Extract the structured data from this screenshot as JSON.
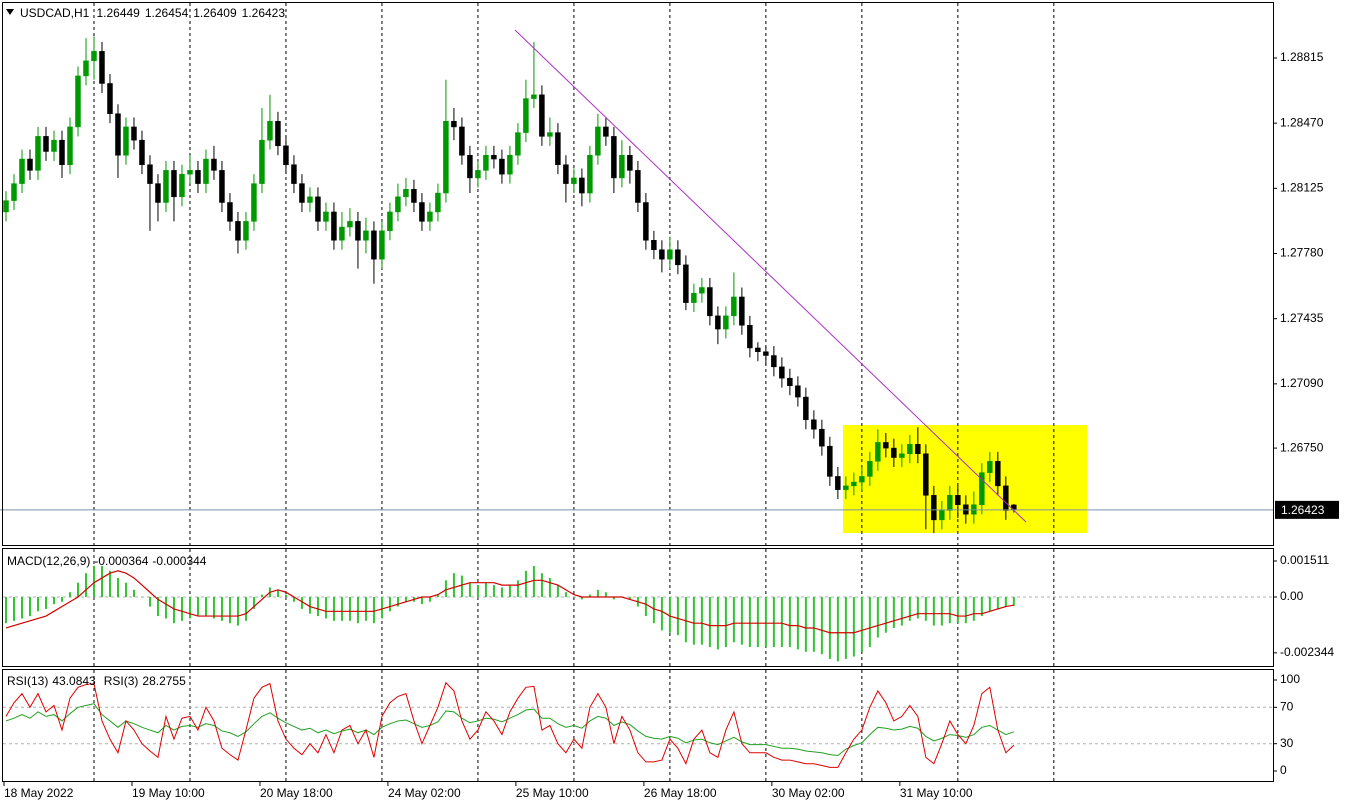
{
  "chart_data": [
    {
      "type": "candlestick",
      "title": "USDCAD,H1",
      "bull_color": "#009900",
      "bear_color": "#000000",
      "price_line_color": "#7a93a8",
      "xlim": [
        -0.75,
        158.4
      ],
      "xticks": [
        {
          "value": 0,
          "label": "18 May 2022"
        },
        {
          "value": 16,
          "label": "19 May 10:00"
        },
        {
          "value": 32,
          "label": "20 May 18:00"
        },
        {
          "value": 48,
          "label": "24 May 02:00"
        },
        {
          "value": 64,
          "label": "25 May 10:00"
        },
        {
          "value": 80,
          "label": "26 May 18:00"
        },
        {
          "value": 96,
          "label": "30 May 02:00"
        },
        {
          "value": 112,
          "label": "31 May 10:00"
        }
      ],
      "xgrid": [
        11,
        23,
        35,
        47,
        59,
        71,
        83,
        95,
        107,
        119,
        131
      ],
      "ylim": [
        1.26237,
        1.29106
      ],
      "yticks": [
        1.28815,
        {
          "value": 1.2847,
          "label": "1.28470"
        },
        1.28125,
        {
          "value": 1.2778,
          "label": "1.27780"
        },
        1.27435,
        {
          "value": 1.2709,
          "label": "1.27090"
        },
        {
          "value": 1.2675,
          "label": "1.26750"
        }
      ],
      "open": [
        1.28,
        1.2806,
        1.2815,
        1.2828,
        1.2822,
        1.284,
        1.2832,
        1.2838,
        1.2825,
        1.2845,
        1.2872,
        1.288,
        1.2885,
        1.2868,
        1.2852,
        1.283,
        1.2845,
        1.2838,
        1.2825,
        1.2815,
        1.2805,
        1.2822,
        1.2808,
        1.282,
        1.2822,
        1.2815,
        1.2828,
        1.2822,
        1.2805,
        1.2795,
        1.2785,
        1.2795,
        1.2815,
        1.2838,
        1.2848,
        1.2835,
        1.2825,
        1.2815,
        1.2805,
        1.2808,
        1.2795,
        1.28,
        1.2785,
        1.2792,
        1.2795,
        1.2785,
        1.279,
        1.2775,
        1.279,
        1.28,
        1.2808,
        1.2812,
        1.2805,
        1.2795,
        1.28,
        1.281,
        1.2848,
        1.2845,
        1.283,
        1.2818,
        1.2822,
        1.283,
        1.2828,
        1.282,
        1.283,
        1.2842,
        1.286,
        1.2862,
        1.284,
        1.2842,
        1.2825,
        1.2815,
        1.2818,
        1.281,
        1.283,
        1.2845,
        1.284,
        1.2818,
        1.283,
        1.2822,
        1.2805,
        1.2785,
        1.278,
        1.2775,
        1.278,
        1.2772,
        1.2752,
        1.2757,
        1.276,
        1.2745,
        1.2738,
        1.2745,
        1.2755,
        1.274,
        1.2728,
        1.2726,
        1.2724,
        1.2718,
        1.2712,
        1.2708,
        1.2702,
        1.269,
        1.2685,
        1.2676,
        1.266,
        1.2653,
        1.2655,
        1.2657,
        1.266,
        1.2668,
        1.2678,
        1.2675,
        1.267,
        1.2672,
        1.2677,
        1.2672,
        1.265,
        1.2637,
        1.2642,
        1.265,
        1.2645,
        1.264,
        1.2645,
        1.2662,
        1.2668,
        1.2655,
        1.26449
      ],
      "high": [
        1.2811,
        1.282,
        1.2833,
        1.2833,
        1.2845,
        1.2845,
        1.2843,
        1.2843,
        1.285,
        1.2877,
        1.2892,
        1.2893,
        1.289,
        1.2873,
        1.2857,
        1.285,
        1.285,
        1.2843,
        1.283,
        1.282,
        1.2827,
        1.2827,
        1.2825,
        1.283,
        1.2827,
        1.2833,
        1.2835,
        1.2827,
        1.281,
        1.28,
        1.28,
        1.282,
        1.2855,
        1.2862,
        1.2853,
        1.284,
        1.283,
        1.282,
        1.2813,
        1.2813,
        1.2805,
        1.2805,
        1.28,
        1.2802,
        1.28,
        1.2797,
        1.2795,
        1.2795,
        1.2805,
        1.2815,
        1.2818,
        1.2817,
        1.281,
        1.2805,
        1.2815,
        1.287,
        1.2855,
        1.285,
        1.2835,
        1.2827,
        1.2835,
        1.2835,
        1.2833,
        1.2835,
        1.2847,
        1.287,
        1.289,
        1.2867,
        1.285,
        1.2847,
        1.283,
        1.2823,
        1.2823,
        1.2835,
        1.2852,
        1.285,
        1.2845,
        1.2838,
        1.2835,
        1.2827,
        1.281,
        1.279,
        1.2785,
        1.2787,
        1.2785,
        1.2777,
        1.2762,
        1.2765,
        1.2765,
        1.275,
        1.275,
        1.2768,
        1.276,
        1.2745,
        1.2731,
        1.2729,
        1.2729,
        1.2723,
        1.2717,
        1.2713,
        1.2707,
        1.2695,
        1.269,
        1.2681,
        1.2665,
        1.266,
        1.2662,
        1.2665,
        1.2673,
        1.2685,
        1.2683,
        1.268,
        1.2677,
        1.2682,
        1.2686,
        1.2677,
        1.2655,
        1.2647,
        1.2655,
        1.2655,
        1.265,
        1.2652,
        1.2667,
        1.2673,
        1.2673,
        1.266,
        1.26454
      ],
      "low": [
        1.2795,
        1.2801,
        1.281,
        1.2817,
        1.2817,
        1.2827,
        1.2827,
        1.2818,
        1.282,
        1.284,
        1.2867,
        1.287,
        1.2863,
        1.2847,
        1.2818,
        1.2825,
        1.2833,
        1.282,
        1.279,
        1.2795,
        1.28,
        1.2795,
        1.2803,
        1.2815,
        1.281,
        1.281,
        1.2817,
        1.28,
        1.279,
        1.2778,
        1.278,
        1.279,
        1.281,
        1.2833,
        1.283,
        1.282,
        1.281,
        1.28,
        1.28,
        1.279,
        1.279,
        1.278,
        1.278,
        1.2787,
        1.277,
        1.2778,
        1.2762,
        1.277,
        1.2785,
        1.2795,
        1.2803,
        1.28,
        1.279,
        1.279,
        1.2795,
        1.2805,
        1.2838,
        1.2825,
        1.281,
        1.2813,
        1.2817,
        1.2823,
        1.2815,
        1.2815,
        1.2825,
        1.2837,
        1.2855,
        1.2835,
        1.2835,
        1.282,
        1.2805,
        1.281,
        1.2803,
        1.2805,
        1.2825,
        1.2835,
        1.281,
        1.2813,
        1.2815,
        1.28,
        1.278,
        1.2775,
        1.2768,
        1.277,
        1.2767,
        1.2748,
        1.2747,
        1.2752,
        1.274,
        1.273,
        1.2733,
        1.274,
        1.2735,
        1.2723,
        1.2721,
        1.2719,
        1.2713,
        1.2707,
        1.2703,
        1.2697,
        1.2685,
        1.268,
        1.2671,
        1.2655,
        1.2648,
        1.2648,
        1.265,
        1.2652,
        1.2655,
        1.2663,
        1.267,
        1.2665,
        1.2665,
        1.2667,
        1.2667,
        1.2632,
        1.263,
        1.2632,
        1.2637,
        1.2638,
        1.2635,
        1.2635,
        1.264,
        1.2657,
        1.265,
        1.2637,
        1.26409
      ],
      "close": [
        1.2806,
        1.2815,
        1.2828,
        1.2822,
        1.284,
        1.2832,
        1.2838,
        1.2825,
        1.2845,
        1.2872,
        1.288,
        1.2885,
        1.2868,
        1.2852,
        1.283,
        1.2845,
        1.2838,
        1.2825,
        1.2815,
        1.2805,
        1.2822,
        1.2808,
        1.282,
        1.2822,
        1.2815,
        1.2828,
        1.2822,
        1.2805,
        1.2795,
        1.2785,
        1.2795,
        1.2815,
        1.2838,
        1.2848,
        1.2835,
        1.2825,
        1.2815,
        1.2805,
        1.2808,
        1.2795,
        1.28,
        1.2785,
        1.2792,
        1.2795,
        1.2785,
        1.279,
        1.2775,
        1.279,
        1.28,
        1.2808,
        1.2812,
        1.2805,
        1.2795,
        1.28,
        1.281,
        1.2848,
        1.2845,
        1.283,
        1.2818,
        1.2822,
        1.283,
        1.2828,
        1.282,
        1.283,
        1.2842,
        1.286,
        1.2862,
        1.284,
        1.2842,
        1.2825,
        1.2815,
        1.2818,
        1.281,
        1.283,
        1.2845,
        1.284,
        1.2818,
        1.283,
        1.2822,
        1.2805,
        1.2785,
        1.278,
        1.2775,
        1.278,
        1.2772,
        1.2752,
        1.2757,
        1.276,
        1.2745,
        1.2738,
        1.2745,
        1.2755,
        1.274,
        1.2728,
        1.2726,
        1.2724,
        1.2718,
        1.2712,
        1.2708,
        1.2702,
        1.269,
        1.2685,
        1.2676,
        1.266,
        1.2653,
        1.2655,
        1.2657,
        1.266,
        1.2668,
        1.2678,
        1.2675,
        1.267,
        1.2672,
        1.2677,
        1.2672,
        1.265,
        1.2637,
        1.2642,
        1.265,
        1.2645,
        1.264,
        1.2645,
        1.2662,
        1.2668,
        1.2655,
        1.2642,
        1.26423
      ]
    },
    {
      "type": "macd",
      "title": "MACD(12,26,9)",
      "histogram_color": "#33c433",
      "signal_color": "#d40000",
      "ylim": [
        -0.002896,
        0.002015
      ],
      "yticks": [
        0.001511,
        {
          "value": 0,
          "label": "0.00"
        },
        -0.002344
      ],
      "levels": [
        0
      ],
      "histogram": [
        -0.0011,
        -0.001,
        -0.0009,
        -0.0008,
        -0.0006,
        -0.0005,
        -0.0003,
        -0.0002,
        0.0002,
        0.0006,
        0.001,
        0.0013,
        0.0013,
        0.0011,
        0.0008,
        0.0006,
        0.0003,
        0,
        -0.0004,
        -0.0008,
        -0.0009,
        -0.0011,
        -0.001,
        -0.0009,
        -0.0008,
        -0.0008,
        -0.0009,
        -0.001,
        -0.0011,
        -0.0012,
        -0.001,
        -0.0005,
        0.0001,
        0.0004,
        0.0003,
        0.0001,
        -0.0002,
        -0.0005,
        -0.0007,
        -0.0008,
        -0.0009,
        -0.001,
        -0.001,
        -0.001,
        -0.0011,
        -0.001,
        -0.0011,
        -0.0009,
        -0.0006,
        -0.0004,
        -0.0002,
        -0.0002,
        -0.0003,
        -0.0002,
        0.0001,
        0.0007,
        0.001,
        0.0009,
        0.0006,
        0.0005,
        0.0006,
        0.0005,
        0.0004,
        0.0005,
        0.0007,
        0.0011,
        0.0013,
        0.001,
        0.0008,
        0.0005,
        0.0002,
        0,
        -0.0001,
        0.0001,
        0.0003,
        0.0002,
        -0.0001,
        0,
        -0.0001,
        -0.0004,
        -0.0008,
        -0.0011,
        -0.0014,
        -0.0015,
        -0.0016,
        -0.0019,
        -0.002,
        -0.002,
        -0.0021,
        -0.0022,
        -0.0021,
        -0.0019,
        -0.002,
        -0.0021,
        -0.0021,
        -0.0021,
        -0.0021,
        -0.0021,
        -0.0021,
        -0.0022,
        -0.0023,
        -0.0023,
        -0.0024,
        -0.0026,
        -0.0027,
        -0.0026,
        -0.0025,
        -0.0023,
        -0.0021,
        -0.0017,
        -0.0015,
        -0.0013,
        -0.0012,
        -0.001,
        -0.0009,
        -0.001,
        -0.0012,
        -0.0012,
        -0.0011,
        -0.0011,
        -0.0011,
        -0.001,
        -0.0008,
        -0.0006,
        -0.0005,
        -0.0004,
        -0.000364
      ],
      "signal": [
        -0.0013,
        -0.0012,
        -0.0011,
        -0.001,
        -0.0009,
        -0.0008,
        -0.0006,
        -0.0004,
        -0.0002,
        0,
        0.0003,
        0.0006,
        0.0008,
        0.001,
        0.0011,
        0.001,
        0.0008,
        0.0005,
        0.0002,
        -0.0001,
        -0.0003,
        -0.0005,
        -0.0006,
        -0.0007,
        -0.0008,
        -0.0008,
        -0.0008,
        -0.0008,
        -0.0008,
        -0.0008,
        -0.0007,
        -0.0004,
        -0.0001,
        0.0002,
        0.0003,
        0.0002,
        0,
        -0.0002,
        -0.0004,
        -0.0005,
        -0.0006,
        -0.0006,
        -0.0006,
        -0.0006,
        -0.0006,
        -0.0006,
        -0.0006,
        -0.0005,
        -0.0004,
        -0.0003,
        -0.0002,
        -0.0001,
        0,
        0,
        0.0001,
        0.0003,
        0.0004,
        0.0005,
        0.0006,
        0.0006,
        0.0006,
        0.0006,
        0.0005,
        0.0005,
        0.0005,
        0.0006,
        0.0007,
        0.0007,
        0.0006,
        0.0005,
        0.0003,
        0.0001,
        0,
        0,
        0,
        0,
        0,
        0,
        -0.0001,
        -0.0002,
        -0.0003,
        -0.0005,
        -0.0006,
        -0.0008,
        -0.0009,
        -0.001,
        -0.0011,
        -0.0011,
        -0.0012,
        -0.0012,
        -0.0012,
        -0.0011,
        -0.0011,
        -0.0011,
        -0.0011,
        -0.0011,
        -0.0011,
        -0.0011,
        -0.0012,
        -0.0012,
        -0.0013,
        -0.0013,
        -0.0014,
        -0.0015,
        -0.0015,
        -0.0015,
        -0.0015,
        -0.0014,
        -0.0013,
        -0.0012,
        -0.0011,
        -0.001,
        -0.0009,
        -0.0008,
        -0.0007,
        -0.0007,
        -0.0007,
        -0.0007,
        -0.0007,
        -0.0008,
        -0.0008,
        -0.0007,
        -0.0007,
        -0.0006,
        -0.0005,
        -0.0004,
        -0.000344
      ]
    },
    {
      "type": "rsi",
      "ylim": [
        -11,
        111
      ],
      "yticks": [
        100,
        70,
        30,
        0
      ],
      "levels": [
        70,
        30
      ],
      "series": [
        {
          "name": "RSI(13)",
          "color": "#22a022",
          "values": [
            55,
            58,
            62,
            58,
            65,
            60,
            62,
            55,
            63,
            70,
            72,
            74,
            62,
            55,
            48,
            55,
            52,
            48,
            45,
            42,
            50,
            45,
            49,
            50,
            48,
            52,
            50,
            44,
            42,
            38,
            43,
            52,
            60,
            64,
            58,
            53,
            49,
            45,
            47,
            42,
            45,
            41,
            44,
            46,
            42,
            45,
            40,
            48,
            52,
            55,
            56,
            52,
            48,
            50,
            54,
            66,
            65,
            58,
            53,
            55,
            58,
            57,
            54,
            58,
            62,
            67,
            68,
            58,
            58,
            52,
            48,
            50,
            47,
            55,
            60,
            58,
            50,
            54,
            51,
            44,
            38,
            36,
            35,
            38,
            36,
            31,
            34,
            35,
            31,
            29,
            33,
            37,
            32,
            29,
            29,
            29,
            27,
            25,
            25,
            24,
            22,
            21,
            20,
            18,
            17,
            24,
            28,
            31,
            40,
            48,
            47,
            45,
            46,
            49,
            47,
            38,
            33,
            36,
            40,
            39,
            37,
            40,
            48,
            50,
            45,
            40,
            43.0843
          ]
        },
        {
          "name": "RSI(3)",
          "color": "#e00000",
          "values": [
            60,
            75,
            85,
            70,
            85,
            65,
            72,
            45,
            80,
            92,
            95,
            96,
            55,
            35,
            20,
            55,
            45,
            30,
            22,
            15,
            60,
            35,
            58,
            60,
            45,
            70,
            55,
            25,
            18,
            12,
            45,
            80,
            92,
            96,
            55,
            35,
            25,
            18,
            30,
            20,
            40,
            20,
            45,
            50,
            30,
            45,
            15,
            60,
            75,
            82,
            85,
            55,
            30,
            50,
            70,
            97,
            88,
            55,
            35,
            45,
            65,
            55,
            40,
            65,
            80,
            92,
            93,
            45,
            50,
            30,
            20,
            35,
            25,
            70,
            85,
            70,
            30,
            60,
            45,
            20,
            10,
            10,
            12,
            35,
            25,
            8,
            35,
            45,
            20,
            15,
            45,
            65,
            30,
            20,
            20,
            20,
            15,
            12,
            12,
            10,
            8,
            8,
            6,
            4,
            4,
            20,
            35,
            45,
            70,
            88,
            75,
            55,
            60,
            72,
            60,
            15,
            8,
            30,
            55,
            40,
            30,
            50,
            85,
            92,
            45,
            20,
            28.2755
          ]
        }
      ]
    }
  ]
}
